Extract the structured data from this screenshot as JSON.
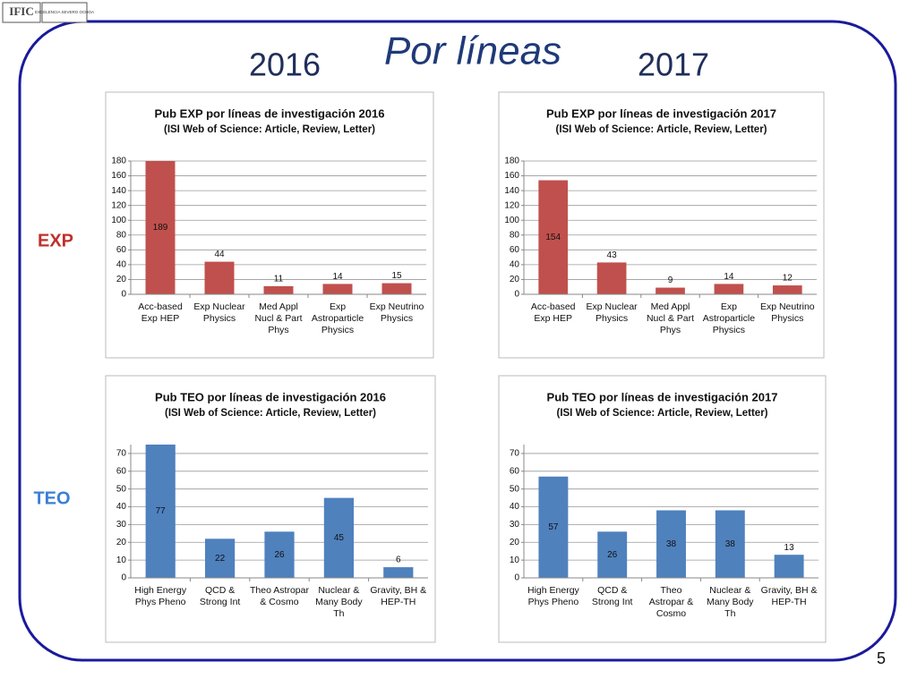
{
  "slide": {
    "title": "Por líneas",
    "year_left": "2016",
    "year_right": "2017",
    "row_exp": "EXP",
    "row_teo": "TEO",
    "page_number": "5",
    "logo_left": "IFIC",
    "logo_right": "EXCELENCIA SEVERO OCHOA"
  },
  "chart_data": [
    {
      "type": "bar",
      "title": "Pub EXP por líneas de investigación 2016",
      "subtitle": "(ISI Web of Science: Article, Review, Letter)",
      "categories": [
        "Acc-based Exp HEP",
        "Exp Nuclear Physics",
        "Med Appl Nucl & Part Phys",
        "Exp Astroparticle Physics",
        "Exp Neutrino Physics"
      ],
      "values": [
        189,
        44,
        11,
        14,
        15
      ],
      "color": "#c0504d",
      "ylim": [
        0,
        180
      ],
      "yticks": [
        0,
        20,
        40,
        60,
        80,
        100,
        120,
        140,
        160,
        180
      ],
      "grid": true
    },
    {
      "type": "bar",
      "title": "Pub EXP por líneas de investigación 2017",
      "subtitle": "(ISI Web of Science: Article, Review, Letter)",
      "categories": [
        "Acc-based Exp HEP",
        "Exp Nuclear Physics",
        "Med Appl Nucl & Part Phys",
        "Exp Astroparticle Physics",
        "Exp Neutrino Physics"
      ],
      "values": [
        154,
        43,
        9,
        14,
        12
      ],
      "color": "#c0504d",
      "ylim": [
        0,
        180
      ],
      "yticks": [
        0,
        20,
        40,
        60,
        80,
        100,
        120,
        140,
        160,
        180
      ],
      "grid": true
    },
    {
      "type": "bar",
      "title": "Pub TEO por líneas de investigación 2016",
      "subtitle": "(ISI Web of Science: Article, Review, Letter)",
      "categories": [
        "High Energy Phys Pheno",
        "QCD & Strong Int",
        "Theo Astropar & Cosmo",
        "Nuclear & Many Body Th",
        "Gravity, BH & HEP-TH"
      ],
      "values": [
        77,
        22,
        26,
        45,
        6
      ],
      "color": "#4f81bd",
      "ylim": [
        0,
        75
      ],
      "yticks": [
        0,
        10,
        20,
        30,
        40,
        50,
        60,
        70
      ],
      "grid": true
    },
    {
      "type": "bar",
      "title": "Pub TEO por líneas de investigación 2017",
      "subtitle": "(ISI Web of Science: Article, Review, Letter)",
      "categories": [
        "High Energy Phys Pheno",
        "QCD & Strong Int",
        "Theo Astropar & Cosmo",
        "Nuclear & Many Body Th",
        "Gravity, BH & HEP-TH"
      ],
      "values": [
        57,
        26,
        38,
        38,
        13
      ],
      "color": "#4f81bd",
      "ylim": [
        0,
        75
      ],
      "yticks": [
        0,
        10,
        20,
        30,
        40,
        50,
        60,
        70
      ],
      "grid": true
    }
  ]
}
